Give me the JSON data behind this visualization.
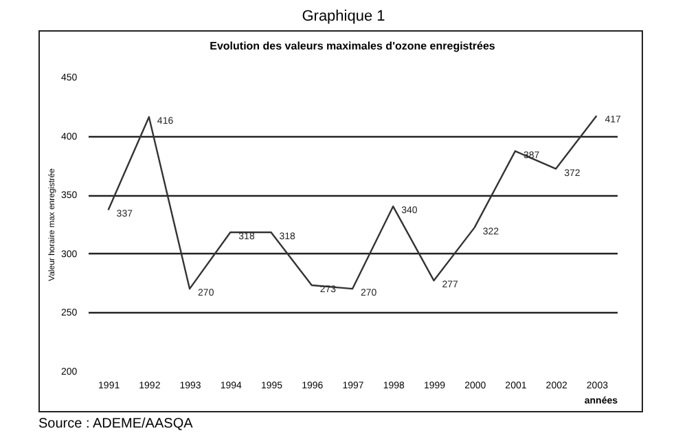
{
  "chart_data": {
    "type": "line",
    "title": "Graphique 1",
    "subtitle": "Evolution des valeurs maximales d'ozone enregistrées",
    "xlabel": "années",
    "ylabel": "Valeur horaire max enregistrée",
    "categories": [
      "1991",
      "1992",
      "1993",
      "1994",
      "1995",
      "1996",
      "1997",
      "1998",
      "1999",
      "2000",
      "2001",
      "2002",
      "2003"
    ],
    "series": [
      {
        "color": "#333333",
        "values": [
          337,
          416,
          270,
          318,
          318,
          273,
          270,
          340,
          277,
          322,
          387,
          372,
          417
        ]
      }
    ],
    "ylim": [
      200,
      450
    ],
    "yticks": [
      200,
      250,
      300,
      350,
      400,
      450
    ],
    "grid": "y",
    "data_labels": true,
    "marker": "none",
    "line_style": "solid",
    "annotations": [
      "Source : ADEME/AASQA"
    ]
  }
}
